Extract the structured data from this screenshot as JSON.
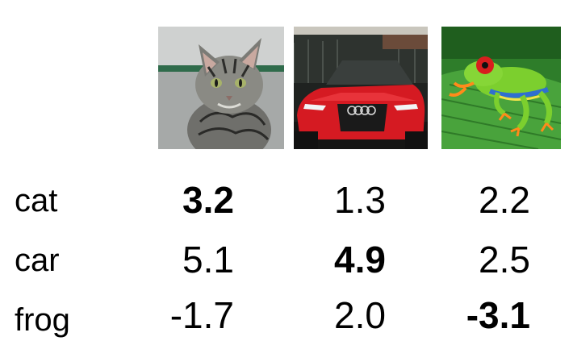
{
  "images": [
    {
      "subject": "cat"
    },
    {
      "subject": "car"
    },
    {
      "subject": "frog"
    }
  ],
  "classes": [
    "cat",
    "car",
    "frog"
  ],
  "scores": [
    [
      "3.2",
      "1.3",
      "2.2"
    ],
    [
      "5.1",
      "4.9",
      "2.5"
    ],
    [
      "-1.7",
      "2.0",
      "-3.1"
    ]
  ],
  "bold": [
    [
      true,
      false,
      false
    ],
    [
      false,
      true,
      false
    ],
    [
      false,
      false,
      true
    ]
  ]
}
